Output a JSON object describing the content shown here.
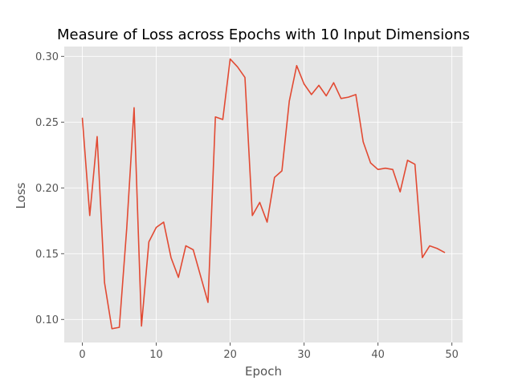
{
  "chart_data": {
    "type": "line",
    "title": "Measure of Loss across Epochs with 10 Input Dimensions",
    "xlabel": "Epoch",
    "ylabel": "Loss",
    "xlim": [
      -2.45,
      51.45
    ],
    "ylim": [
      0.0825,
      0.3075
    ],
    "xticks": [
      0,
      10,
      20,
      30,
      40,
      50
    ],
    "yticks": [
      0.1,
      0.15,
      0.2,
      0.25,
      0.3
    ],
    "ytick_labels": [
      "0.10",
      "0.15",
      "0.20",
      "0.25",
      "0.30"
    ],
    "grid": true,
    "style": "ggplot",
    "colors": {
      "plot_background": "#e5e5e5",
      "grid": "#ffffff",
      "line": "#e24a33",
      "tick_text": "#555555"
    },
    "series": [
      {
        "x": [
          0,
          1,
          2,
          3,
          4,
          5,
          6,
          7,
          8,
          9,
          10,
          11,
          12,
          13,
          14,
          15,
          16,
          17,
          18,
          19,
          20,
          21,
          22,
          23,
          24,
          25,
          26,
          27,
          28,
          29,
          30,
          31,
          32,
          33,
          34,
          35,
          36,
          37,
          38,
          39,
          40,
          41,
          42,
          43,
          44,
          45,
          46,
          47,
          48,
          49
        ],
        "values": [
          0.253,
          0.179,
          0.239,
          0.128,
          0.093,
          0.094,
          0.169,
          0.261,
          0.095,
          0.159,
          0.17,
          0.174,
          0.147,
          0.132,
          0.156,
          0.153,
          0.133,
          0.113,
          0.254,
          0.252,
          0.298,
          0.292,
          0.284,
          0.179,
          0.189,
          0.174,
          0.208,
          0.213,
          0.266,
          0.293,
          0.279,
          0.271,
          0.278,
          0.27,
          0.28,
          0.268,
          0.269,
          0.271,
          0.235,
          0.219,
          0.214,
          0.215,
          0.214,
          0.197,
          0.221,
          0.218,
          0.147,
          0.156,
          0.154,
          0.151
        ]
      }
    ]
  }
}
